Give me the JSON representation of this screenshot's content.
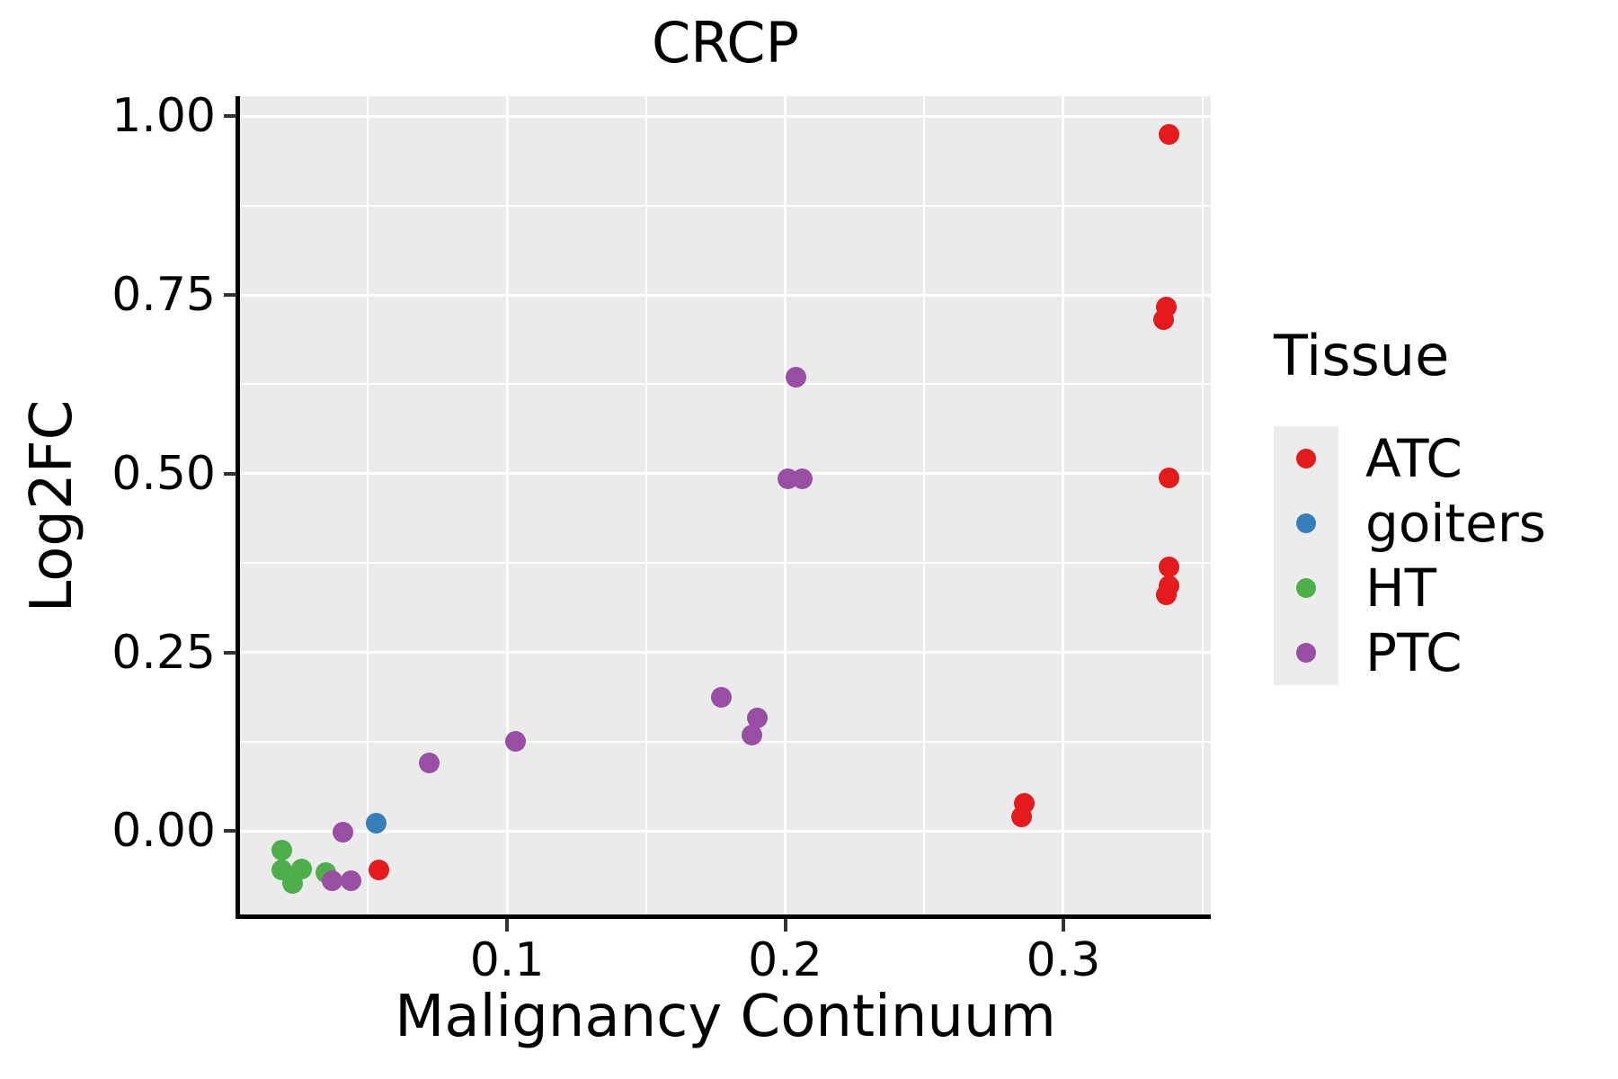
{
  "title": "CRCP",
  "colors": {
    "panel_bg": "#EBEBEB",
    "grid": "#FFFFFF",
    "axis_line": "#000000",
    "tick_mark": "#333333",
    "text": "#000000",
    "legend_key_bg": "#ECECEC",
    "atc_red": "#E41A1C",
    "goiters_blue": "#377EB8",
    "ht_green": "#4DAF4A",
    "ptc_purple": "#984EA3"
  },
  "chart_data": {
    "type": "scatter",
    "title": "CRCP",
    "xlabel": "Malignancy Continuum",
    "ylabel": "Log2FC",
    "legend_title": "Tissue",
    "legend_position": "right",
    "grid": true,
    "xlim": [
      0.004,
      0.353
    ],
    "ylim": [
      -0.119,
      1.028
    ],
    "x_ticks": [
      {
        "value": 0.1,
        "label": "0.1"
      },
      {
        "value": 0.2,
        "label": "0.2"
      },
      {
        "value": 0.3,
        "label": "0.3"
      }
    ],
    "y_ticks": [
      {
        "value": 0.0,
        "label": "0.00"
      },
      {
        "value": 0.25,
        "label": "0.25"
      },
      {
        "value": 0.5,
        "label": "0.50"
      },
      {
        "value": 0.75,
        "label": "0.75"
      },
      {
        "value": 1.0,
        "label": "1.00"
      }
    ],
    "x_minor_ticks": [
      0.05,
      0.15,
      0.25,
      0.35
    ],
    "y_minor_ticks": [
      0.125,
      0.375,
      0.625,
      0.875
    ],
    "series": [
      {
        "name": "ATC",
        "color": "#E41A1C",
        "points": [
          [
            0.338,
            0.975
          ],
          [
            0.337,
            0.733
          ],
          [
            0.336,
            0.716
          ],
          [
            0.338,
            0.494
          ],
          [
            0.338,
            0.37
          ],
          [
            0.338,
            0.343
          ],
          [
            0.337,
            0.331
          ],
          [
            0.286,
            0.039
          ],
          [
            0.285,
            0.02
          ],
          [
            0.054,
            -0.054
          ]
        ]
      },
      {
        "name": "goiters",
        "color": "#377EB8",
        "points": [
          [
            0.053,
            0.011
          ]
        ]
      },
      {
        "name": "HT",
        "color": "#4DAF4A",
        "points": [
          [
            0.019,
            -0.026
          ],
          [
            0.019,
            -0.054
          ],
          [
            0.026,
            -0.053
          ],
          [
            0.023,
            -0.073
          ],
          [
            0.035,
            -0.058
          ]
        ]
      },
      {
        "name": "PTC",
        "color": "#984EA3",
        "points": [
          [
            0.204,
            0.635
          ],
          [
            0.201,
            0.493
          ],
          [
            0.206,
            0.493
          ],
          [
            0.177,
            0.187
          ],
          [
            0.19,
            0.158
          ],
          [
            0.188,
            0.134
          ],
          [
            0.103,
            0.126
          ],
          [
            0.072,
            0.096
          ],
          [
            0.041,
            -0.001
          ],
          [
            0.037,
            -0.069
          ],
          [
            0.044,
            -0.069
          ]
        ]
      }
    ]
  }
}
